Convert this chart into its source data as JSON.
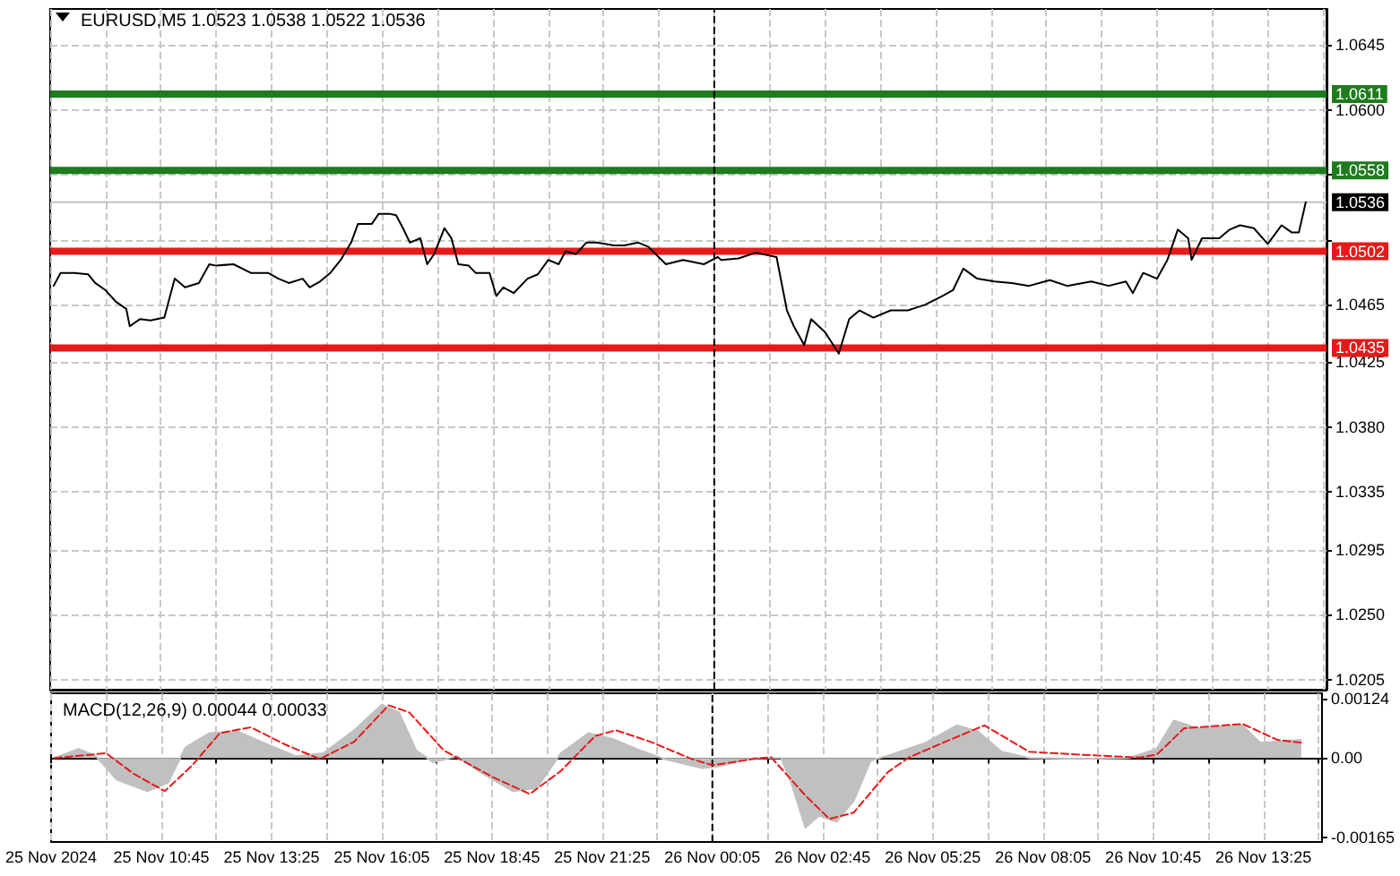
{
  "chart_data": [
    {
      "type": "line",
      "title": "EURUSD,M5 1.0523 1.0538 1.0522 1.0536",
      "marker": "none",
      "grid": true,
      "tick_labels": "y",
      "xlim": [
        "2024-11-25T08:05",
        "2024-11-26T14:50"
      ],
      "xticks": [
        {
          "value": "2024-11-25T08:05",
          "label": null
        },
        {
          "value": "2024-11-25T09:25",
          "label": null
        },
        {
          "value": "2024-11-25T10:45",
          "label": null
        },
        {
          "value": "2024-11-25T12:05",
          "label": null
        },
        {
          "value": "2024-11-25T13:25",
          "label": null
        },
        {
          "value": "2024-11-25T14:45",
          "label": null
        },
        {
          "value": "2024-11-25T16:05",
          "label": null
        },
        {
          "value": "2024-11-25T17:25",
          "label": null
        },
        {
          "value": "2024-11-25T18:45",
          "label": null
        },
        {
          "value": "2024-11-25T20:05",
          "label": null
        },
        {
          "value": "2024-11-25T21:25",
          "label": null
        },
        {
          "value": "2024-11-25T22:45",
          "label": null
        },
        {
          "value": "2024-11-26T00:05",
          "label": null
        },
        {
          "value": "2024-11-26T01:25",
          "label": null
        },
        {
          "value": "2024-11-26T02:45",
          "label": null
        },
        {
          "value": "2024-11-26T04:05",
          "label": null
        },
        {
          "value": "2024-11-26T05:25",
          "label": null
        },
        {
          "value": "2024-11-26T06:45",
          "label": null
        },
        {
          "value": "2024-11-26T08:05",
          "label": null
        },
        {
          "value": "2024-11-26T09:25",
          "label": null
        },
        {
          "value": "2024-11-26T10:45",
          "label": null
        },
        {
          "value": "2024-11-26T12:05",
          "label": null
        },
        {
          "value": "2024-11-26T13:25",
          "label": null
        },
        {
          "value": "2024-11-26T14:45",
          "label": null
        }
      ],
      "ylim": [
        1.0198,
        1.067
      ],
      "yticks": [
        {
          "value": 1.0205,
          "label": "1.0205"
        },
        {
          "value": 1.025,
          "label": "1.0250"
        },
        {
          "value": 1.0295,
          "label": "1.0295"
        },
        {
          "value": 1.0335,
          "label": "1.0335"
        },
        {
          "value": 1.038,
          "label": "1.0380"
        },
        {
          "value": 1.0425,
          "label": "1.0425"
        },
        {
          "value": 1.0465,
          "label": "1.0465"
        },
        {
          "value": 1.051,
          "label": null
        },
        {
          "value": 1.0555,
          "label": null
        },
        {
          "value": 1.06,
          "label": "1.0600"
        },
        {
          "value": 1.0645,
          "label": "1.0645"
        }
      ],
      "ref_lines": [
        {
          "axis": "y",
          "value": 1.0611,
          "label": "1.0611",
          "color": "#1e7b1e"
        },
        {
          "axis": "y",
          "value": 1.0558,
          "label": "1.0558",
          "color": "#1e7b1e"
        },
        {
          "axis": "y",
          "value": 1.0536,
          "label": "1.0536",
          "color": "#c0c0c0"
        },
        {
          "axis": "y",
          "value": 1.0502,
          "label": "1.0502",
          "color": "#e51a1a"
        },
        {
          "axis": "y",
          "value": 1.0435,
          "label": "1.0435",
          "color": "#e51a1a"
        },
        {
          "axis": "x",
          "value": "2024-11-26T00:05",
          "color": "#000000",
          "line_style": "dashed"
        }
      ],
      "series": [
        {
          "type": "line",
          "color": "#000000",
          "x": [
            "2024-11-25T08:10",
            "2024-11-25T08:20",
            "2024-11-25T08:40",
            "2024-11-25T09:00",
            "2024-11-25T09:10",
            "2024-11-25T09:25",
            "2024-11-25T09:40",
            "2024-11-25T09:55",
            "2024-11-25T10:00",
            "2024-11-25T10:15",
            "2024-11-25T10:30",
            "2024-11-25T10:50",
            "2024-11-25T10:55",
            "2024-11-25T11:05",
            "2024-11-25T11:20",
            "2024-11-25T11:40",
            "2024-11-25T11:55",
            "2024-11-25T12:05",
            "2024-11-25T12:30",
            "2024-11-25T12:55",
            "2024-11-25T13:20",
            "2024-11-25T13:35",
            "2024-11-25T13:50",
            "2024-11-25T14:10",
            "2024-11-25T14:20",
            "2024-11-25T14:35",
            "2024-11-25T14:50",
            "2024-11-25T15:05",
            "2024-11-25T15:20",
            "2024-11-25T15:30",
            "2024-11-25T15:50",
            "2024-11-25T16:00",
            "2024-11-25T16:15",
            "2024-11-25T16:25",
            "2024-11-25T16:35",
            "2024-11-25T16:45",
            "2024-11-25T17:00",
            "2024-11-25T17:10",
            "2024-11-25T17:20",
            "2024-11-25T17:35",
            "2024-11-25T17:45",
            "2024-11-25T17:55",
            "2024-11-25T18:10",
            "2024-11-25T18:20",
            "2024-11-25T18:40",
            "2024-11-25T18:50",
            "2024-11-25T19:00",
            "2024-11-25T19:15",
            "2024-11-25T19:35",
            "2024-11-25T19:50",
            "2024-11-25T20:05",
            "2024-11-25T20:20",
            "2024-11-25T20:30",
            "2024-11-25T20:45",
            "2024-11-25T21:00",
            "2024-11-25T21:15",
            "2024-11-25T21:40",
            "2024-11-25T21:55",
            "2024-11-25T22:15",
            "2024-11-25T22:30",
            "2024-11-25T22:55",
            "2024-11-25T23:20",
            "2024-11-25T23:50",
            "2024-11-26T00:10",
            "2024-11-26T00:15",
            "2024-11-26T00:40",
            "2024-11-26T01:05",
            "2024-11-26T01:35",
            "2024-11-26T01:50",
            "2024-11-26T02:00",
            "2024-11-26T02:15",
            "2024-11-26T02:25",
            "2024-11-26T02:45",
            "2024-11-26T03:05",
            "2024-11-26T03:20",
            "2024-11-26T03:35",
            "2024-11-26T03:55",
            "2024-11-26T04:20",
            "2024-11-26T04:45",
            "2024-11-26T05:10",
            "2024-11-26T05:35",
            "2024-11-26T05:50",
            "2024-11-26T06:05",
            "2024-11-26T06:25",
            "2024-11-26T06:50",
            "2024-11-26T07:15",
            "2024-11-26T07:40",
            "2024-11-26T08:10",
            "2024-11-26T08:35",
            "2024-11-26T09:10",
            "2024-11-26T09:35",
            "2024-11-26T10:00",
            "2024-11-26T10:10",
            "2024-11-26T10:25",
            "2024-11-26T10:45",
            "2024-11-26T11:00",
            "2024-11-26T11:15",
            "2024-11-26T11:30",
            "2024-11-26T11:35",
            "2024-11-26T11:50",
            "2024-11-26T12:15",
            "2024-11-26T12:30",
            "2024-11-26T12:45",
            "2024-11-26T13:05",
            "2024-11-26T13:25",
            "2024-11-26T13:45",
            "2024-11-26T14:00",
            "2024-11-26T14:10",
            "2024-11-26T14:20"
          ],
          "values": [
            1.0478,
            1.0487,
            1.0487,
            1.0486,
            1.048,
            1.0475,
            1.0467,
            1.0462,
            1.045,
            1.0455,
            1.0454,
            1.0456,
            1.0465,
            1.0483,
            1.0477,
            1.048,
            1.0493,
            1.0492,
            1.0493,
            1.0487,
            1.0487,
            1.0483,
            1.048,
            1.0483,
            1.0477,
            1.0481,
            1.0487,
            1.0496,
            1.0508,
            1.0521,
            1.0521,
            1.0528,
            1.0528,
            1.0527,
            1.0518,
            1.0508,
            1.0511,
            1.0493,
            1.05,
            1.0518,
            1.0511,
            1.0493,
            1.0492,
            1.0487,
            1.0487,
            1.0471,
            1.0477,
            1.0473,
            1.0483,
            1.0486,
            1.0496,
            1.0493,
            1.0502,
            1.05,
            1.0508,
            1.0508,
            1.0506,
            1.0506,
            1.0508,
            1.0505,
            1.0493,
            1.0496,
            1.0493,
            1.0498,
            1.0496,
            1.0497,
            1.0501,
            1.0498,
            1.0461,
            1.045,
            1.0437,
            1.0455,
            1.0446,
            1.0431,
            1.0455,
            1.0461,
            1.0456,
            1.0461,
            1.0461,
            1.0465,
            1.0471,
            1.0475,
            1.049,
            1.0483,
            1.0481,
            1.048,
            1.0478,
            1.0482,
            1.0478,
            1.0481,
            1.0478,
            1.0481,
            1.0473,
            1.0487,
            1.0483,
            1.0496,
            1.0517,
            1.0511,
            1.0496,
            1.0511,
            1.0511,
            1.0517,
            1.052,
            1.0518,
            1.0507,
            1.052,
            1.0515,
            1.0515,
            1.0536
          ]
        }
      ]
    },
    {
      "type": "line",
      "title": "MACD(12,26,9) 0.00044 0.00033",
      "marker": "none",
      "grid": "x",
      "xlim": [
        "2024-11-25T08:05",
        "2024-11-26T14:50"
      ],
      "xticks": [
        {
          "value": "2024-11-25T08:05",
          "label": "25 Nov 2024"
        },
        {
          "value": "2024-11-25T09:25",
          "label": null
        },
        {
          "value": "2024-11-25T10:45",
          "label": "25 Nov 10:45"
        },
        {
          "value": "2024-11-25T12:05",
          "label": null
        },
        {
          "value": "2024-11-25T13:25",
          "label": "25 Nov 13:25"
        },
        {
          "value": "2024-11-25T14:45",
          "label": null
        },
        {
          "value": "2024-11-25T16:05",
          "label": "25 Nov 16:05"
        },
        {
          "value": "2024-11-25T17:25",
          "label": null
        },
        {
          "value": "2024-11-25T18:45",
          "label": "25 Nov 18:45"
        },
        {
          "value": "2024-11-25T20:05",
          "label": null
        },
        {
          "value": "2024-11-25T21:25",
          "label": "25 Nov 21:25"
        },
        {
          "value": "2024-11-25T22:45",
          "label": null
        },
        {
          "value": "2024-11-26T00:05",
          "label": "26 Nov 00:05"
        },
        {
          "value": "2024-11-26T01:25",
          "label": null
        },
        {
          "value": "2024-11-26T02:45",
          "label": "26 Nov 02:45"
        },
        {
          "value": "2024-11-26T04:05",
          "label": null
        },
        {
          "value": "2024-11-26T05:25",
          "label": "26 Nov 05:25"
        },
        {
          "value": "2024-11-26T06:45",
          "label": null
        },
        {
          "value": "2024-11-26T08:05",
          "label": "26 Nov 08:05"
        },
        {
          "value": "2024-11-26T09:25",
          "label": null
        },
        {
          "value": "2024-11-26T10:45",
          "label": "26 Nov 10:45"
        },
        {
          "value": "2024-11-26T12:05",
          "label": null
        },
        {
          "value": "2024-11-26T13:25",
          "label": "26 Nov 13:25"
        },
        {
          "value": "2024-11-26T14:45",
          "label": null
        }
      ],
      "ylim": [
        -0.00175,
        0.00135
      ],
      "yticks": [
        -0.00165,
        {
          "value": 0,
          "label": "0.00"
        },
        0.00124
      ],
      "ref_lines": [
        {
          "axis": "x",
          "value": "2024-11-26T00:05",
          "color": "#000000",
          "line_style": "dashed"
        }
      ],
      "series": [
        {
          "type": "area",
          "color": "#c0c0c0",
          "x": [
            "2024-11-25T08:10",
            "2024-11-25T08:45",
            "2024-11-25T09:10",
            "2024-11-25T09:40",
            "2024-11-25T10:25",
            "2024-11-25T10:55",
            "2024-11-25T11:20",
            "2024-11-25T11:55",
            "2024-11-25T12:35",
            "2024-11-25T13:20",
            "2024-11-25T14:00",
            "2024-11-25T14:40",
            "2024-11-25T15:25",
            "2024-11-25T16:05",
            "2024-11-25T16:30",
            "2024-11-25T16:55",
            "2024-11-25T17:20",
            "2024-11-25T17:55",
            "2024-11-25T18:25",
            "2024-11-25T19:15",
            "2024-11-25T19:50",
            "2024-11-25T20:25",
            "2024-11-25T21:05",
            "2024-11-25T21:40",
            "2024-11-25T22:20",
            "2024-11-25T22:55",
            "2024-11-25T23:50",
            "2024-11-26T00:15",
            "2024-11-26T01:05",
            "2024-11-26T01:45",
            "2024-11-26T02:00",
            "2024-11-26T02:20",
            "2024-11-26T02:40",
            "2024-11-26T03:05",
            "2024-11-26T03:30",
            "2024-11-26T03:55",
            "2024-11-26T04:25",
            "2024-11-26T05:15",
            "2024-11-26T06:00",
            "2024-11-26T06:30",
            "2024-11-26T07:05",
            "2024-11-26T07:45",
            "2024-11-26T09:00",
            "2024-11-26T10:10",
            "2024-11-26T10:50",
            "2024-11-26T11:15",
            "2024-11-26T11:50",
            "2024-11-26T12:55",
            "2024-11-26T13:20",
            "2024-11-26T14:20"
          ],
          "values": [
            0,
            0.00019,
            4e-05,
            -0.00045,
            -0.00069,
            -0.00051,
            0.00022,
            0.00052,
            0.00056,
            0.00028,
            4e-05,
            0.0001,
            0.00058,
            0.00111,
            0.00095,
            0.00016,
            -9e-05,
            4e-05,
            -0.00027,
            -0.00069,
            -0.00063,
            0.0001,
            0.00052,
            0.0004,
            0.00016,
            -2e-05,
            -0.00021,
            -0.00017,
            0,
            0,
            -0.00054,
            -0.00145,
            -0.0012,
            -0.00133,
            -0.0009,
            -5e-05,
            7e-05,
            0.00032,
            0.00068,
            0.00056,
            0.00013,
            0,
            -2e-05,
            0,
            0.00019,
            0.00078,
            0.00062,
            0.00068,
            0.00032,
            0.00038
          ]
        },
        {
          "type": "line",
          "color": "#e51a1a",
          "line_style": "dashed",
          "x": [
            "2024-11-25T08:10",
            "2024-11-25T09:25",
            "2024-11-25T10:05",
            "2024-11-25T10:50",
            "2024-11-25T11:30",
            "2024-11-25T12:10",
            "2024-11-25T12:55",
            "2024-11-25T13:45",
            "2024-11-25T14:35",
            "2024-11-25T15:25",
            "2024-11-25T16:15",
            "2024-11-25T16:45",
            "2024-11-25T17:35",
            "2024-11-25T18:45",
            "2024-11-25T19:40",
            "2024-11-25T20:25",
            "2024-11-25T21:15",
            "2024-11-25T21:45",
            "2024-11-25T22:35",
            "2024-11-25T23:35",
            "2024-11-26T00:05",
            "2024-11-26T01:05",
            "2024-11-26T01:30",
            "2024-11-26T02:20",
            "2024-11-26T02:55",
            "2024-11-26T03:30",
            "2024-11-26T04:20",
            "2024-11-26T04:50",
            "2024-11-26T05:40",
            "2024-11-26T06:40",
            "2024-11-26T07:45",
            "2024-11-26T09:00",
            "2024-11-26T10:25",
            "2024-11-26T10:50",
            "2024-11-26T11:30",
            "2024-11-26T12:55",
            "2024-11-26T13:45",
            "2024-11-26T14:20"
          ],
          "values": [
            0,
            0.0001,
            -0.00033,
            -0.00069,
            -0.00015,
            0.00052,
            0.00064,
            0.00028,
            -2e-05,
            0.00034,
            0.0011,
            0.00095,
            0.00016,
            -0.00039,
            -0.00075,
            -0.00027,
            0.00046,
            0.00058,
            0.00034,
            -2e-05,
            -0.00015,
            -2e-05,
            2e-05,
            -0.00078,
            -0.00127,
            -0.00114,
            -0.00029,
            1e-05,
            0.00032,
            0.00068,
            0.00013,
            7e-05,
            1e-05,
            7e-05,
            0.00062,
            0.00071,
            0.00038,
            0.00032
          ]
        }
      ]
    }
  ]
}
